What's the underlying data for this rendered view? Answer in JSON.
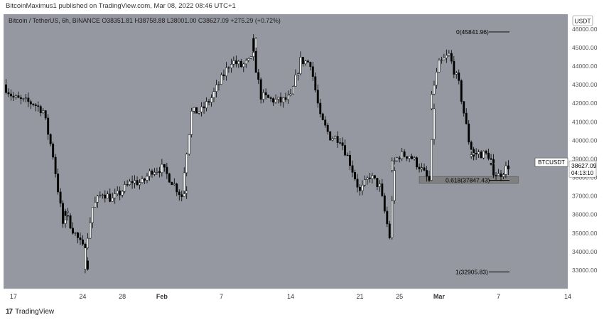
{
  "header": {
    "published_text": "BitcoinMaximus1 published on TradingView.com, Mar 08, 2022 08:46 UTC+1",
    "legend_title": "Bitcoin / TetherUS, 6h, BINANCE",
    "legend_values": [
      {
        "key": "O",
        "value": "38351.81"
      },
      {
        "key": "H",
        "value": "38758.88"
      },
      {
        "key": "L",
        "value": "38001.00"
      },
      {
        "key": "C",
        "value": "38627.09"
      },
      {
        "key": "",
        "value": "+275.29 (+0.72%)"
      }
    ]
  },
  "footer": {
    "logo": "17",
    "brand": "TradingView"
  },
  "colors": {
    "background": "#9598a1",
    "up_body": "#ffffff",
    "down_body": "#000000",
    "wick": "#000000",
    "zone": "#808080",
    "label_bg": "#ffffff"
  },
  "chart_data": {
    "type": "candlestick",
    "symbol": "BTCUSDT",
    "currency_label": "USDT",
    "ylim": [
      32000,
      46800
    ],
    "xlim": [
      "2022-01-16",
      "2022-03-14"
    ],
    "y_ticks": [
      {
        "value": 33000,
        "label": "33000.00"
      },
      {
        "value": 34000,
        "label": "34000.00"
      },
      {
        "value": 35000,
        "label": "35000.00"
      },
      {
        "value": 36000,
        "label": "36000.00"
      },
      {
        "value": 37000,
        "label": "37000.00"
      },
      {
        "value": 38000,
        "label": "38000.00"
      },
      {
        "value": 39000,
        "label": "39000.00"
      },
      {
        "value": 40000,
        "label": "40000.00"
      },
      {
        "value": 41000,
        "label": "41000.00"
      },
      {
        "value": 42000,
        "label": "42000.00"
      },
      {
        "value": 43000,
        "label": "43000.00"
      },
      {
        "value": 44000,
        "label": "44000.00"
      },
      {
        "value": 45000,
        "label": "45000.00"
      },
      {
        "value": 46000,
        "label": "46000.00"
      }
    ],
    "x_ticks": [
      {
        "date": "2022-01-17",
        "label": "17"
      },
      {
        "date": "2022-01-24",
        "label": "24"
      },
      {
        "date": "2022-01-28",
        "label": "28"
      },
      {
        "date": "2022-02-01",
        "label": "Feb"
      },
      {
        "date": "2022-02-07",
        "label": "7"
      },
      {
        "date": "2022-02-14",
        "label": "14"
      },
      {
        "date": "2022-02-21",
        "label": "21"
      },
      {
        "date": "2022-02-25",
        "label": "25"
      },
      {
        "date": "2022-03-01",
        "label": "Mar"
      },
      {
        "date": "2022-03-07",
        "label": "7"
      },
      {
        "date": "2022-03-14",
        "label": "14"
      }
    ],
    "price_label": {
      "value": 38627.09,
      "text": "38627.09",
      "countdown": "04:13:10"
    },
    "fib_levels": [
      {
        "ratio": "0",
        "price": 45841.96,
        "label": "0(45841.96)"
      },
      {
        "ratio": "0.618",
        "price": 37847.43,
        "label": "0.618(37847.43)"
      },
      {
        "ratio": "1",
        "price": 32905.83,
        "label": "1(32905.83)"
      }
    ],
    "support_zone": {
      "from": "2022-02-27",
      "to": "2022-03-09",
      "low": 37680,
      "high": 38050
    },
    "anchors": [
      {
        "date": "2022-01-16",
        "price": 43000
      },
      {
        "date": "2022-01-17",
        "price": 42300
      },
      {
        "date": "2022-01-18",
        "price": 42100
      },
      {
        "date": "2022-01-19",
        "price": 42000
      },
      {
        "date": "2022-01-20",
        "price": 41600
      },
      {
        "date": "2022-01-21",
        "price": 39200
      },
      {
        "date": "2022-01-22",
        "price": 35500
      },
      {
        "date": "2022-01-22",
        "price": 36300
      },
      {
        "date": "2022-01-23",
        "price": 35200
      },
      {
        "date": "2022-01-24",
        "price": 34200
      },
      {
        "date": "2022-01-24",
        "price": 33300
      },
      {
        "date": "2022-01-25",
        "price": 36400
      },
      {
        "date": "2022-01-26",
        "price": 37200
      },
      {
        "date": "2022-01-27",
        "price": 36800
      },
      {
        "date": "2022-01-28",
        "price": 37300
      },
      {
        "date": "2022-01-29",
        "price": 37800
      },
      {
        "date": "2022-01-30",
        "price": 37700
      },
      {
        "date": "2022-01-31",
        "price": 38400
      },
      {
        "date": "2022-02-01",
        "price": 38500
      },
      {
        "date": "2022-02-02",
        "price": 37800
      },
      {
        "date": "2022-02-03",
        "price": 37000
      },
      {
        "date": "2022-02-03",
        "price": 37400
      },
      {
        "date": "2022-02-04",
        "price": 41500
      },
      {
        "date": "2022-02-05",
        "price": 41600
      },
      {
        "date": "2022-02-06",
        "price": 42300
      },
      {
        "date": "2022-02-07",
        "price": 43300
      },
      {
        "date": "2022-02-08",
        "price": 44300
      },
      {
        "date": "2022-02-09",
        "price": 44000
      },
      {
        "date": "2022-02-10",
        "price": 44300
      },
      {
        "date": "2022-02-10",
        "price": 45300
      },
      {
        "date": "2022-02-11",
        "price": 42400
      },
      {
        "date": "2022-02-12",
        "price": 42200
      },
      {
        "date": "2022-02-13",
        "price": 42100
      },
      {
        "date": "2022-02-14",
        "price": 42300
      },
      {
        "date": "2022-02-15",
        "price": 44300
      },
      {
        "date": "2022-02-16",
        "price": 44200
      },
      {
        "date": "2022-02-17",
        "price": 41200
      },
      {
        "date": "2022-02-18",
        "price": 40200
      },
      {
        "date": "2022-02-19",
        "price": 40100
      },
      {
        "date": "2022-02-20",
        "price": 38800
      },
      {
        "date": "2022-02-21",
        "price": 37200
      },
      {
        "date": "2022-02-22",
        "price": 38100
      },
      {
        "date": "2022-02-23",
        "price": 37500
      },
      {
        "date": "2022-02-24",
        "price": 34800
      },
      {
        "date": "2022-02-24",
        "price": 38500
      },
      {
        "date": "2022-02-25",
        "price": 39200
      },
      {
        "date": "2022-02-26",
        "price": 39200
      },
      {
        "date": "2022-02-27",
        "price": 38600
      },
      {
        "date": "2022-02-28",
        "price": 37800
      },
      {
        "date": "2022-02-28",
        "price": 41800
      },
      {
        "date": "2022-03-01",
        "price": 44100
      },
      {
        "date": "2022-03-02",
        "price": 44600
      },
      {
        "date": "2022-03-03",
        "price": 43000
      },
      {
        "date": "2022-03-04",
        "price": 40000
      },
      {
        "date": "2022-03-04",
        "price": 39200
      },
      {
        "date": "2022-03-05",
        "price": 39300
      },
      {
        "date": "2022-03-06",
        "price": 39200
      },
      {
        "date": "2022-03-06",
        "price": 38600
      },
      {
        "date": "2022-03-07",
        "price": 38100
      },
      {
        "date": "2022-03-08",
        "price": 38627
      }
    ]
  }
}
